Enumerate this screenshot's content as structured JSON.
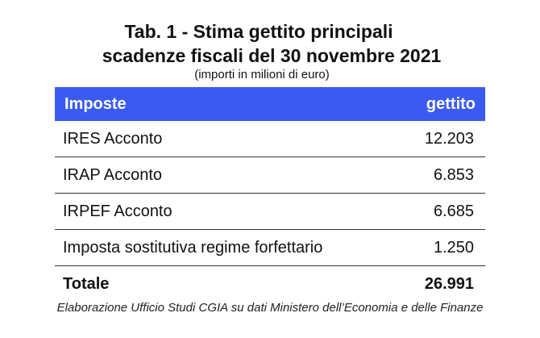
{
  "title_line1": "Tab. 1 - Stima gettito principali",
  "title_line2": "scadenze fiscali del 30 novembre 2021",
  "subtitle": "(importi in milioni di euro)",
  "header": {
    "col1": "Imposte",
    "col2": "gettito"
  },
  "source": "Elaborazione Ufficio Studi CGIA su dati Ministero dell’Economia e delle Finanze",
  "colors": {
    "header_bg": "#3B5BF0",
    "header_text": "#ffffff"
  },
  "chart_data": {
    "type": "table",
    "title": "Tab. 1 - Stima gettito principali scadenze fiscali del 30 novembre 2021",
    "columns": [
      "Imposte",
      "gettito"
    ],
    "rows": [
      {
        "label": "IRES Acconto",
        "value": "12.203"
      },
      {
        "label": "IRAP Acconto",
        "value": "6.853"
      },
      {
        "label": "IRPEF Acconto",
        "value": "6.685"
      },
      {
        "label": "Imposta sostitutiva regime forfettario",
        "value": "1.250"
      }
    ],
    "total": {
      "label": "Totale",
      "value": "26.991"
    }
  }
}
